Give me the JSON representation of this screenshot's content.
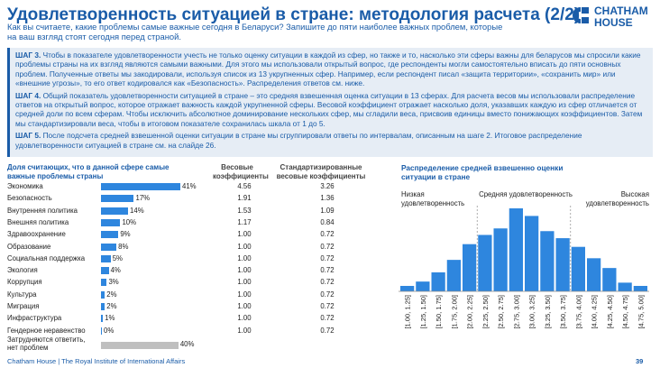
{
  "header": {
    "title": "Удовлетворенность ситуацией в стране: методология расчета (2/2)",
    "subtitle": "Как вы считаете, какие проблемы самые важные сегодня в Беларуси? Запишите до пяти наиболее важных проблем, которые на ваш взгляд стоят сегодня перед страной."
  },
  "logo": {
    "line1": "CHATHAM",
    "line2": "HOUSE"
  },
  "steps": [
    {
      "label": "ШАГ 3.",
      "text": "Чтобы в показателе удовлетворенности учесть не только оценку ситуации в каждой из сфер, но также и то, насколько эти сферы важны для беларусов мы спросили какие проблемы страны на их взгляд являются самыми важными. Для этого мы использовали открытый вопрос, где респонденты могли самостоятельно вписать до пяти основных проблем. Полученные ответы мы закодировали, используя список из 13 укрупненных сфер. Например, если респондент писал «защита территории», «сохранить мир» или «внешние угрозы», то его ответ кодировался как «Безопасность». Распределения ответов см. ниже."
    },
    {
      "label": "ШАГ 4.",
      "text": "Общий показатель удовлетворенности ситуацией в стране – это средняя взвешенная оценка ситуации в 13 сферах. Для расчета весов мы использовали распределение ответов на открытый вопрос, которое отражает важность каждой укрупненной сферы. Весовой коэффициент отражает насколько доля, указавших каждую из сфер отличается от средней доли по всем сферам. Чтобы исключить абсолютное доминирование нескольких сфер, мы сгладили веса, присвоив единицы вместо понижающих коэффициентов. Затем мы стандартизировали веса, чтобы в итоговом показателе сохранилась шкала от 1 до 5."
    },
    {
      "label": "ШАГ 5.",
      "text": "После подсчета средней взвешенной оценки ситуации в стране мы сгруппировали ответы по интервалам, описанным на шаге 2. Итоговое распределение удовлетворенности ситуацией в стране см. на слайде 26."
    }
  ],
  "table": {
    "col_share": "Доля считающих, что в данной сфере самые важные проблемы страны",
    "col_weight": "Весовые коэффициенты",
    "col_std": "Стандартизированные весовые коэффициенты",
    "rows": [
      {
        "label": "Экономика",
        "pct": 41,
        "pct_label": "41%",
        "weight": "4.56",
        "std": "3.26"
      },
      {
        "label": "Безопасность",
        "pct": 17,
        "pct_label": "17%",
        "weight": "1.91",
        "std": "1.36"
      },
      {
        "label": "Внутренняя политика",
        "pct": 14,
        "pct_label": "14%",
        "weight": "1.53",
        "std": "1.09"
      },
      {
        "label": "Внешняя политика",
        "pct": 10,
        "pct_label": "10%",
        "weight": "1.17",
        "std": "0.84"
      },
      {
        "label": "Здравоохранение",
        "pct": 9,
        "pct_label": "9%",
        "weight": "1.00",
        "std": "0.72"
      },
      {
        "label": "Образование",
        "pct": 8,
        "pct_label": "8%",
        "weight": "1.00",
        "std": "0.72"
      },
      {
        "label": "Социальная поддержка",
        "pct": 5,
        "pct_label": "5%",
        "weight": "1.00",
        "std": "0.72"
      },
      {
        "label": "Экология",
        "pct": 4,
        "pct_label": "4%",
        "weight": "1.00",
        "std": "0.72"
      },
      {
        "label": "Коррупция",
        "pct": 3,
        "pct_label": "3%",
        "weight": "1.00",
        "std": "0.72"
      },
      {
        "label": "Культура",
        "pct": 2,
        "pct_label": "2%",
        "weight": "1.00",
        "std": "0.72"
      },
      {
        "label": "Миграция",
        "pct": 2,
        "pct_label": "2%",
        "weight": "1.00",
        "std": "0.72"
      },
      {
        "label": "Инфраструктура",
        "pct": 1,
        "pct_label": "1%",
        "weight": "1.00",
        "std": "0.72"
      },
      {
        "label": "Гендерное неравенство",
        "pct": 0,
        "pct_label": "0%",
        "weight": "1.00",
        "std": "0.72"
      },
      {
        "label": "Затрудняются ответить, нет проблем",
        "pct": 40,
        "pct_label": "40%",
        "weight": "",
        "std": ""
      }
    ]
  },
  "colors": {
    "accent": "#1a5ca8",
    "bar": "#2e86de",
    "bar_gray": "#bfbfbf",
    "panel": "#e6edf5"
  },
  "chart_data": {
    "type": "bar",
    "title": "Распределение средней взвешенно оценки ситуации в стране",
    "categories": [
      "[1.00, 1.25]",
      "[1.25, 1.50]",
      "[1.50, 1.75]",
      "[1.75, 2.00]",
      "[2.00, 2.25]",
      "[2.25, 2.50]",
      "[2.50, 2.75]",
      "[2.75, 3.00]",
      "[3.00, 3.25]",
      "[3.25, 3.50]",
      "[3.50, 3.75]",
      "[3.75, 4.00]",
      "[4.00, 4.25]",
      "[4.25, 4.50]",
      "[4.50, 4.75]",
      "[4.75, 5.00]"
    ],
    "values": [
      1.0,
      1.8,
      3.5,
      5.8,
      8.7,
      10.4,
      11.6,
      15.3,
      13.9,
      11.1,
      9.8,
      8.2,
      6.1,
      4.3,
      1.6,
      1.0
    ],
    "annotations": [
      {
        "label": "Низкая удовлетворенность",
        "from": 0,
        "to": 5
      },
      {
        "label": "Средняя удовлетворенность",
        "from": 5,
        "to": 11
      },
      {
        "label": "Высокая удовлетворенность",
        "from": 11,
        "to": 16
      }
    ],
    "grid": false
  },
  "footer": {
    "source": "Chatham House  |  The Royal Institute of International Affairs",
    "page": "39"
  }
}
